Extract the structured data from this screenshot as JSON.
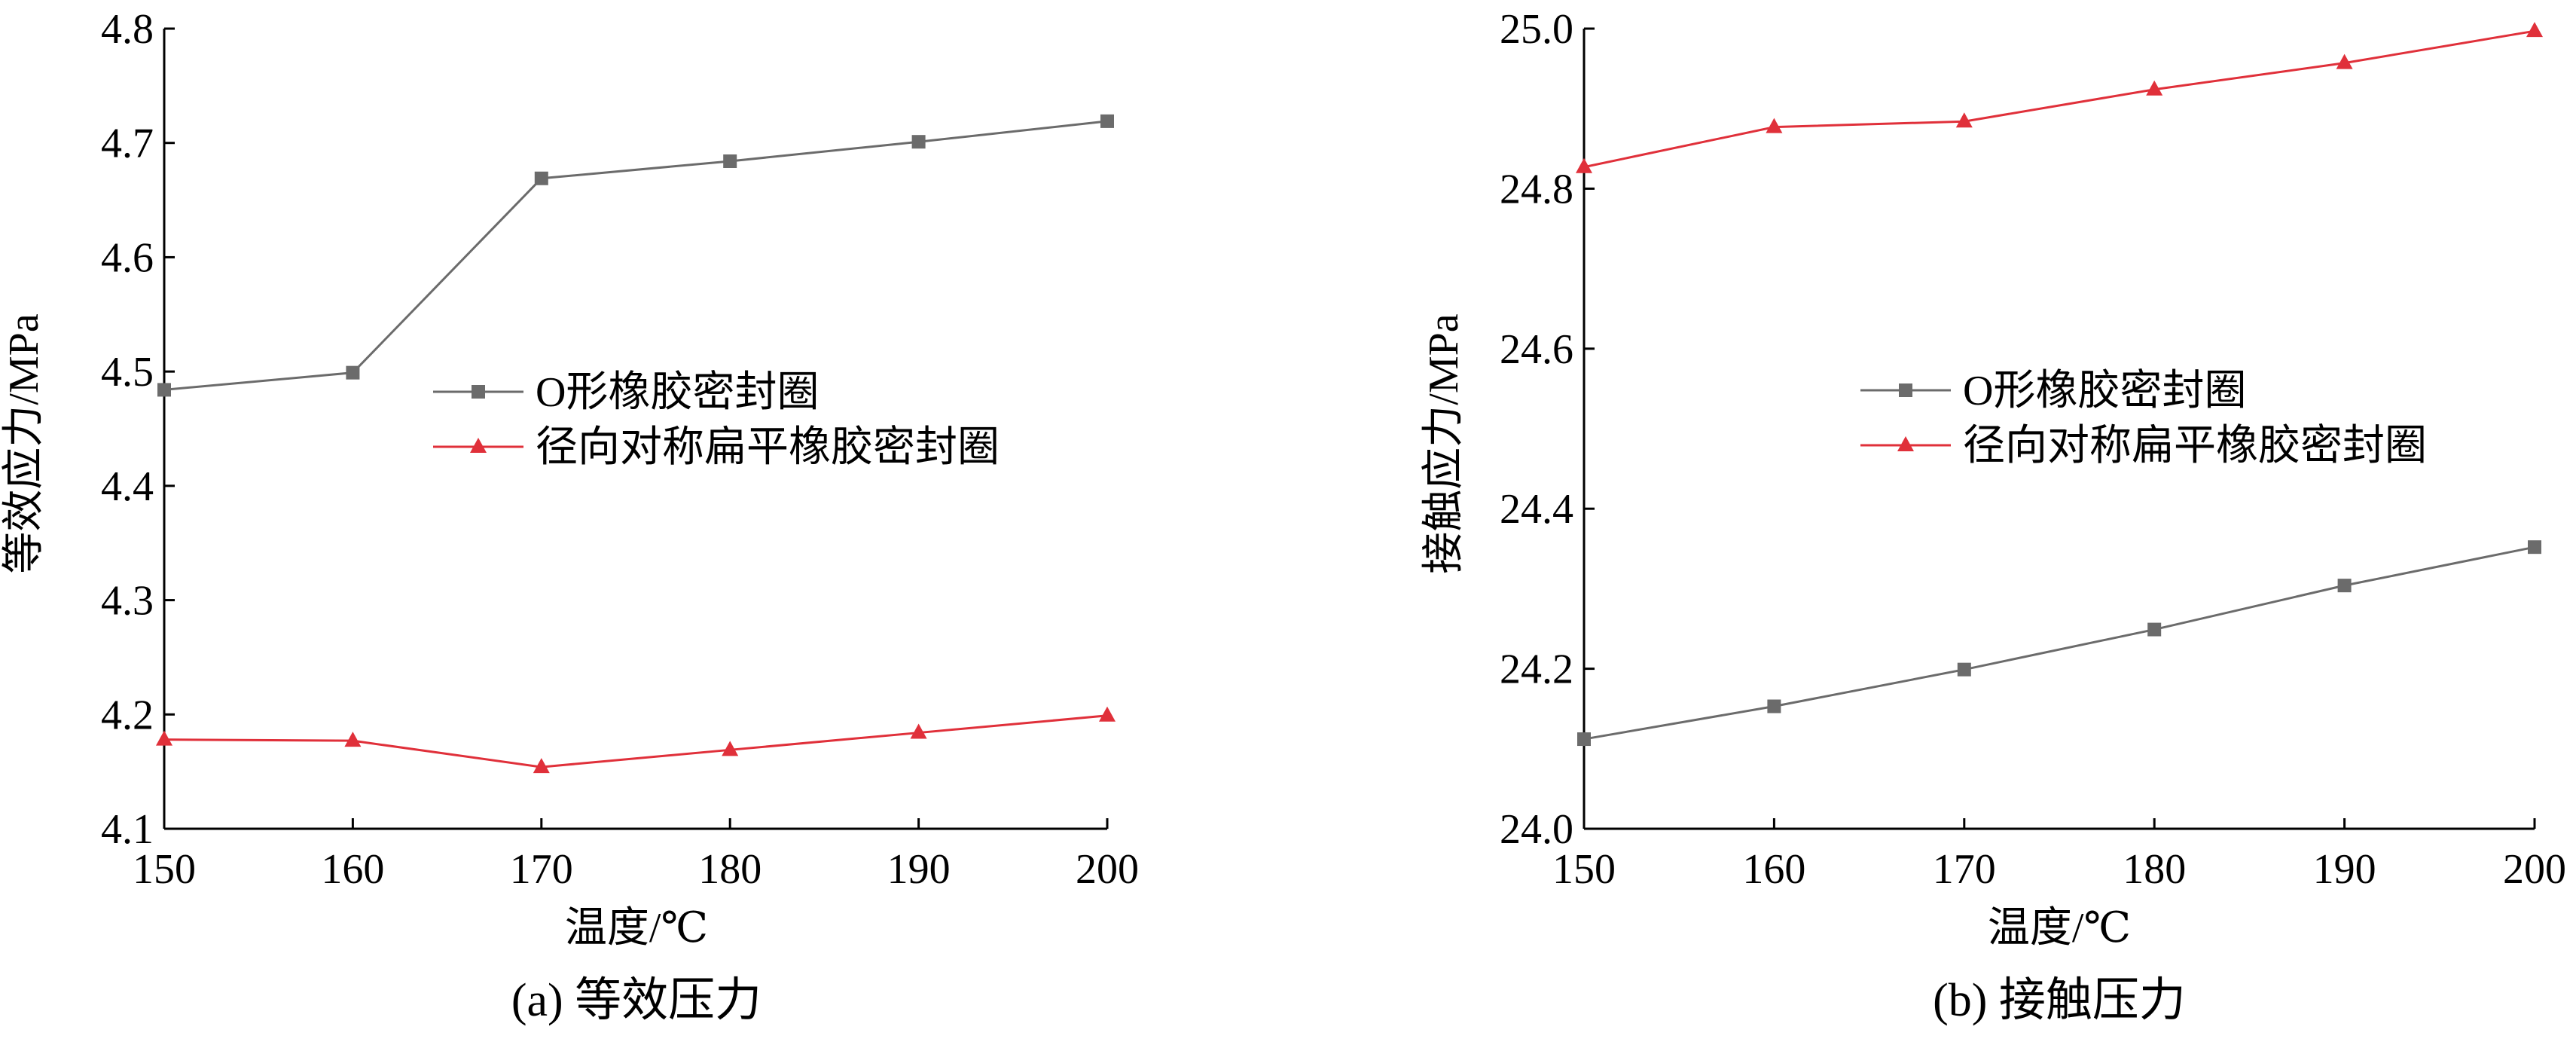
{
  "chart_data": [
    {
      "type": "line",
      "caption": "(a)  等效压力",
      "xlabel": "温度/℃",
      "ylabel": "等效应力/MPa",
      "x": [
        150,
        160,
        170,
        180,
        190,
        200
      ],
      "xlim": [
        150,
        200
      ],
      "ylim": [
        4.1,
        4.8
      ],
      "xticks": [
        "150",
        "160",
        "170",
        "180",
        "190",
        "200"
      ],
      "yticks": [
        "4.1",
        "4.2",
        "4.3",
        "4.4",
        "4.5",
        "4.6",
        "4.7",
        "4.8"
      ],
      "grid": false,
      "legend_position": "center-right",
      "series": [
        {
          "name": "O形橡胶密封圈",
          "color": "#6b6b6b",
          "marker": "square",
          "values": [
            4.484,
            4.499,
            4.669,
            4.684,
            4.701,
            4.719
          ]
        },
        {
          "name": "径向对称扁平橡胶密封圈",
          "color": "#e0303a",
          "marker": "triangle",
          "values": [
            4.178,
            4.177,
            4.154,
            4.169,
            4.184,
            4.199
          ]
        }
      ]
    },
    {
      "type": "line",
      "caption": "(b)  接触压力",
      "xlabel": "温度/℃",
      "ylabel": "接触应力/MPa",
      "x": [
        150,
        160,
        170,
        180,
        190,
        200
      ],
      "xlim": [
        150,
        200
      ],
      "ylim": [
        24.0,
        25.0
      ],
      "xticks": [
        "150",
        "160",
        "170",
        "180",
        "190",
        "200"
      ],
      "yticks": [
        "24.0",
        "24.2",
        "24.4",
        "24.6",
        "24.8",
        "25.0"
      ],
      "grid": false,
      "legend_position": "center-right",
      "series": [
        {
          "name": "O形橡胶密封圈",
          "color": "#6b6b6b",
          "marker": "square",
          "values": [
            24.112,
            24.153,
            24.199,
            24.249,
            24.304,
            24.352
          ]
        },
        {
          "name": "径向对称扁平橡胶密封圈",
          "color": "#e0303a",
          "marker": "triangle",
          "values": [
            24.827,
            24.877,
            24.884,
            24.924,
            24.957,
            24.997
          ]
        }
      ]
    }
  ]
}
